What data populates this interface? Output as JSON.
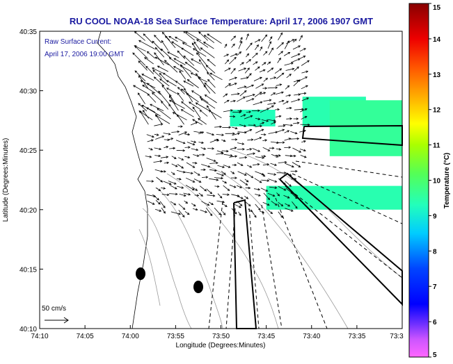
{
  "chart_data": {
    "type": "map",
    "title": "RU COOL  NOAA-18  Sea Surface Temperature:  April 17, 2006 1907 GMT",
    "inset_label_line1": "Raw Surface Current:",
    "inset_label_line2": "April 17, 2006 19:00 GMT",
    "xlabel": "Longitude (Degrees:Minutes)",
    "ylabel": "Latitude (Degrees:Minutes)",
    "x_ticks": [
      "74:10",
      "74:05",
      "74:00",
      "73:55",
      "73:50",
      "73:45",
      "73:40",
      "73:35",
      "73:3"
    ],
    "y_ticks": [
      "40:35",
      "40:30",
      "40:25",
      "40:20",
      "40:15",
      "40:10"
    ],
    "xlim_minutes_west": [
      610,
      570
    ],
    "ylim_minutes_north": [
      2410,
      2435
    ],
    "scale_arrow_label": "50 cm/s",
    "colorbar": {
      "label": "Temperature (°C)",
      "min": 5,
      "max": 15,
      "ticks": [
        "5",
        "6",
        "7",
        "8",
        "9",
        "10",
        "11",
        "12",
        "13",
        "14",
        "15"
      ]
    },
    "sst_patches_celsius": [
      {
        "lon_range": [
          581,
          574
        ],
        "lat_range": [
          2427,
          2429.5
        ],
        "temp": 9.4
      },
      {
        "lon_range": [
          589,
          584
        ],
        "lat_range": [
          2427,
          2428.4
        ],
        "temp": 9.3
      },
      {
        "lon_range": [
          578,
          570
        ],
        "lat_range": [
          2424.5,
          2429.2
        ],
        "temp": 9.6
      },
      {
        "lon_range": [
          585,
          570
        ],
        "lat_range": [
          2420,
          2422
        ],
        "temp": 9.4
      }
    ],
    "grid": false,
    "legend": "colorbar-right"
  }
}
